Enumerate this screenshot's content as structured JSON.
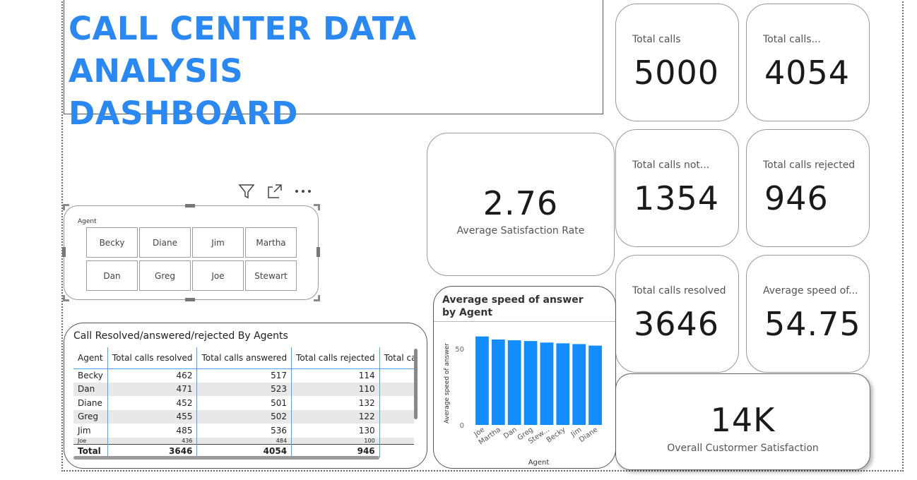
{
  "title": {
    "line1": "CALL CENTER DATA ANALYSIS",
    "line2": "DASHBOARD"
  },
  "kpis": {
    "total_calls": {
      "label": "Total calls",
      "value": "5000"
    },
    "total_calls_answered": {
      "label": "Total calls...",
      "value": "4054"
    },
    "total_calls_not": {
      "label": "Total calls not...",
      "value": "1354"
    },
    "total_calls_rejected": {
      "label": "Total calls rejected",
      "value": "946"
    },
    "total_calls_resolved": {
      "label": "Total calls resolved",
      "value": "3646"
    },
    "avg_speed": {
      "label": "Average speed of...",
      "value": "54.75"
    },
    "avg_satisfaction": {
      "label": "Average Satisfaction Rate",
      "value": "2.76"
    },
    "overall_satisfaction": {
      "label": "Overall Custormer Satisfaction",
      "value": "14K"
    }
  },
  "toolbar": {
    "filter_icon": "filter-icon",
    "focus_icon": "focus-mode-icon",
    "more_icon": "more-options-icon"
  },
  "slicer": {
    "title": "Agent",
    "options": [
      "Becky",
      "Diane",
      "Jim",
      "Martha",
      "Dan",
      "Greg",
      "Joe",
      "Stewart"
    ]
  },
  "table": {
    "title": "Call Resolved/answered/rejected By Agents",
    "columns": [
      "Agent",
      "Total calls resolved",
      "Total calls answered",
      "Total calls rejected",
      "Total calls not r"
    ],
    "rows": [
      [
        "Becky",
        "462",
        "517",
        "114",
        ""
      ],
      [
        "Dan",
        "471",
        "523",
        "110",
        ""
      ],
      [
        "Diane",
        "452",
        "501",
        "132",
        ""
      ],
      [
        "Greg",
        "455",
        "502",
        "122",
        ""
      ],
      [
        "Jim",
        "485",
        "536",
        "130",
        ""
      ],
      [
        "Joe",
        "436",
        "484",
        "100",
        ""
      ]
    ],
    "total": [
      "Total",
      "3646",
      "4054",
      "946",
      ""
    ]
  },
  "chart_data": {
    "type": "bar",
    "title": "Average speed of answer by Agent",
    "xlabel": "Agent",
    "ylabel": "Average speed of answer",
    "categories": [
      "Joe",
      "Martha",
      "Dan",
      "Greg",
      "Stew...",
      "Becky",
      "Jim",
      "Diane"
    ],
    "values": [
      58,
      56,
      55.5,
      55,
      54,
      53.5,
      53,
      52
    ],
    "yticks": [
      "0",
      "50"
    ],
    "ylim": [
      0,
      62
    ],
    "color": "#118dff"
  }
}
